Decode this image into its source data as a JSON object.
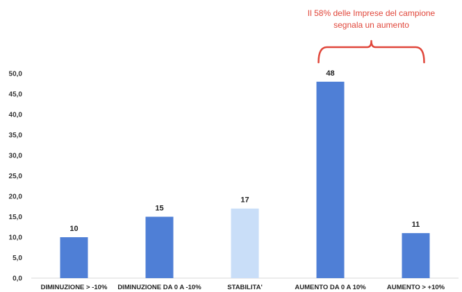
{
  "chart_data": {
    "type": "bar",
    "categories": [
      "DIMINUZIONE > -10%",
      "DIMINUZIONE DA 0 A -10%",
      "STABILITA'",
      "AUMENTO DA 0 A 10%",
      "AUMENTO > +10%"
    ],
    "values": [
      10,
      15,
      17,
      48,
      11
    ],
    "data_labels": [
      "10",
      "15",
      "17",
      "48",
      "11"
    ],
    "bar_colors": [
      "#4f7fd6",
      "#4f7fd6",
      "#c9def8",
      "#4f7fd6",
      "#4f7fd6"
    ],
    "yticks": [
      "0,0",
      "5,0",
      "10,0",
      "15,0",
      "20,0",
      "25,0",
      "30,0",
      "35,0",
      "40,0",
      "45,0",
      "50,0"
    ],
    "ylim": [
      0,
      50
    ],
    "grid": false,
    "title": "",
    "xlabel": "",
    "ylabel": "",
    "annotation": {
      "line1": "Il 58% delle Imprese del campione",
      "line2": "segnala un aumento",
      "color": "#e0463a",
      "spans_categories": [
        3,
        4
      ]
    }
  }
}
